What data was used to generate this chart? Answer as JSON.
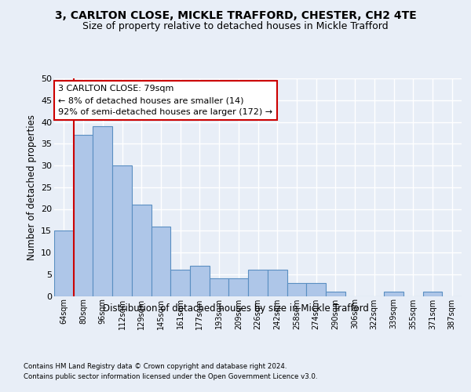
{
  "title1": "3, CARLTON CLOSE, MICKLE TRAFFORD, CHESTER, CH2 4TE",
  "title2": "Size of property relative to detached houses in Mickle Trafford",
  "xlabel": "Distribution of detached houses by size in Mickle Trafford",
  "ylabel": "Number of detached properties",
  "categories": [
    "64sqm",
    "80sqm",
    "96sqm",
    "112sqm",
    "129sqm",
    "145sqm",
    "161sqm",
    "177sqm",
    "193sqm",
    "209sqm",
    "226sqm",
    "242sqm",
    "258sqm",
    "274sqm",
    "290sqm",
    "306sqm",
    "322sqm",
    "339sqm",
    "355sqm",
    "371sqm",
    "387sqm"
  ],
  "values": [
    15,
    37,
    39,
    30,
    21,
    16,
    6,
    7,
    4,
    4,
    6,
    6,
    3,
    3,
    1,
    0,
    0,
    1,
    0,
    1,
    0
  ],
  "bar_color": "#aec6e8",
  "bar_edge_color": "#5a8fc2",
  "annotation_box_text": "3 CARLTON CLOSE: 79sqm\n← 8% of detached houses are smaller (14)\n92% of semi-detached houses are larger (172) →",
  "annotation_box_color": "#ffffff",
  "annotation_box_edge_color": "#cc0000",
  "vline_color": "#cc0000",
  "ylim": [
    0,
    50
  ],
  "yticks": [
    0,
    5,
    10,
    15,
    20,
    25,
    30,
    35,
    40,
    45,
    50
  ],
  "footnote1": "Contains HM Land Registry data © Crown copyright and database right 2024.",
  "footnote2": "Contains public sector information licensed under the Open Government Licence v3.0.",
  "background_color": "#e8eef7",
  "plot_bg_color": "#e8eef7",
  "grid_color": "#ffffff",
  "title1_fontsize": 10,
  "title2_fontsize": 9,
  "xlabel_fontsize": 8.5,
  "ylabel_fontsize": 8.5
}
